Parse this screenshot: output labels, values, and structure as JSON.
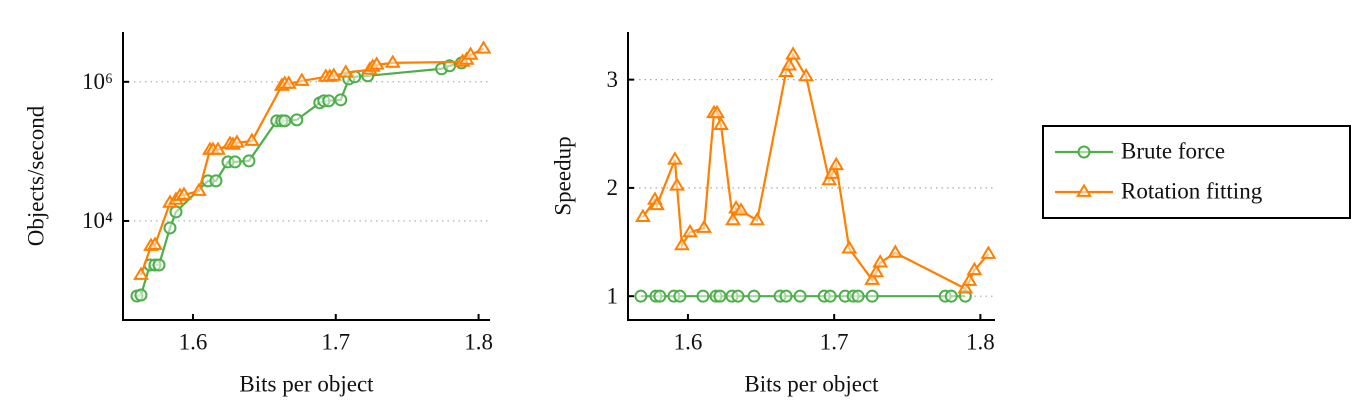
{
  "chart_data": [
    {
      "type": "line",
      "xlabel": "Bits per object",
      "ylabel": "Objects/second",
      "yscale": "log",
      "xlim": [
        1.551,
        1.808
      ],
      "ylim": [
        377,
        5200000
      ],
      "xticks": [
        1.6,
        1.7,
        1.8
      ],
      "yticks": [
        {
          "value": 10000,
          "label": "10⁴"
        },
        {
          "value": 1000000,
          "label": "10⁶"
        }
      ],
      "grid": true,
      "series": [
        {
          "name": "Brute force",
          "color": "#4daf4a",
          "marker": "circle",
          "x": [
            1.5608,
            1.5636,
            1.5699,
            1.5734,
            1.5762,
            1.5839,
            1.5881,
            1.6105,
            1.6161,
            1.6245,
            1.6294,
            1.6392,
            1.6587,
            1.6622,
            1.6643,
            1.6727,
            1.6888,
            1.6916,
            1.6951,
            1.7035,
            1.7091,
            1.7133,
            1.7224,
            1.7741,
            1.7797,
            1.7881
          ],
          "values": [
            834,
            861,
            2330,
            2330,
            2330,
            7930,
            13500,
            37700,
            37700,
            70600,
            70600,
            72900,
            275000,
            275000,
            275000,
            284000,
            499000,
            533000,
            533000,
            551000,
            1100000,
            1180000,
            1220000,
            1540000,
            1700000,
            1870000
          ]
        },
        {
          "name": "Rotation fitting",
          "color": "#ff7f00",
          "marker": "triangle",
          "x": [
            1.5636,
            1.5706,
            1.5734,
            1.5839,
            1.5881,
            1.5909,
            1.5937,
            1.6042,
            1.6119,
            1.614,
            1.6175,
            1.6259,
            1.628,
            1.6308,
            1.6413,
            1.6622,
            1.6643,
            1.6671,
            1.6762,
            1.693,
            1.6958,
            1.6986,
            1.707,
            1.7238,
            1.7259,
            1.7287,
            1.7399,
            1.7888,
            1.7916,
            1.7944,
            1.8035
          ],
          "values": [
            1670,
            4360,
            4520,
            18200,
            20100,
            22900,
            23700,
            27000,
            105000,
            105000,
            105000,
            128000,
            124000,
            133000,
            141000,
            875000,
            935000,
            935000,
            1030000,
            1180000,
            1180000,
            1220000,
            1350000,
            1490000,
            1640000,
            1760000,
            1870000,
            1940000,
            2070000,
            2440000,
            2990000
          ]
        }
      ]
    },
    {
      "type": "line",
      "xlabel": "Bits per object",
      "ylabel": "Speedup",
      "yscale": "linear",
      "xlim": [
        1.559,
        1.81
      ],
      "ylim": [
        0.78,
        3.44
      ],
      "xticks": [
        1.6,
        1.7,
        1.8
      ],
      "yticks": [
        1,
        2,
        3
      ],
      "grid": true,
      "legend": "outside right",
      "series": [
        {
          "name": "Brute force",
          "color": "#4daf4a",
          "marker": "circle",
          "x": [
            1.5678,
            1.5781,
            1.5808,
            1.5904,
            1.5945,
            1.6103,
            1.6192,
            1.6219,
            1.6301,
            1.6342,
            1.6452,
            1.663,
            1.6671,
            1.6767,
            1.6932,
            1.6973,
            1.7075,
            1.713,
            1.7164,
            1.726,
            1.776,
            1.7801,
            1.7897
          ],
          "values": [
            1,
            1,
            1,
            1,
            1,
            1,
            1,
            1,
            1,
            1,
            1,
            1,
            1,
            1,
            1,
            1,
            1,
            1,
            1,
            1,
            1,
            1,
            1
          ]
        },
        {
          "name": "Rotation fitting",
          "color": "#ff7f00",
          "marker": "triangle",
          "x": [
            1.5692,
            1.5774,
            1.5788,
            1.5911,
            1.5925,
            1.5959,
            1.6014,
            1.611,
            1.6178,
            1.6199,
            1.6226,
            1.6308,
            1.6329,
            1.6363,
            1.6473,
            1.6671,
            1.6692,
            1.6719,
            1.6808,
            1.6966,
            1.6986,
            1.7014,
            1.7103,
            1.726,
            1.7288,
            1.7315,
            1.7418,
            1.7897,
            1.7925,
            1.7959,
            1.8055
          ],
          "values": [
            1.73,
            1.89,
            1.84,
            2.26,
            2.02,
            1.47,
            1.59,
            1.63,
            2.69,
            2.69,
            2.58,
            1.7,
            1.81,
            1.79,
            1.7,
            3.07,
            3.13,
            3.23,
            3.03,
            2.07,
            2.13,
            2.21,
            1.44,
            1.15,
            1.22,
            1.31,
            1.4,
            1.07,
            1.14,
            1.24,
            1.39
          ]
        }
      ]
    }
  ]
}
